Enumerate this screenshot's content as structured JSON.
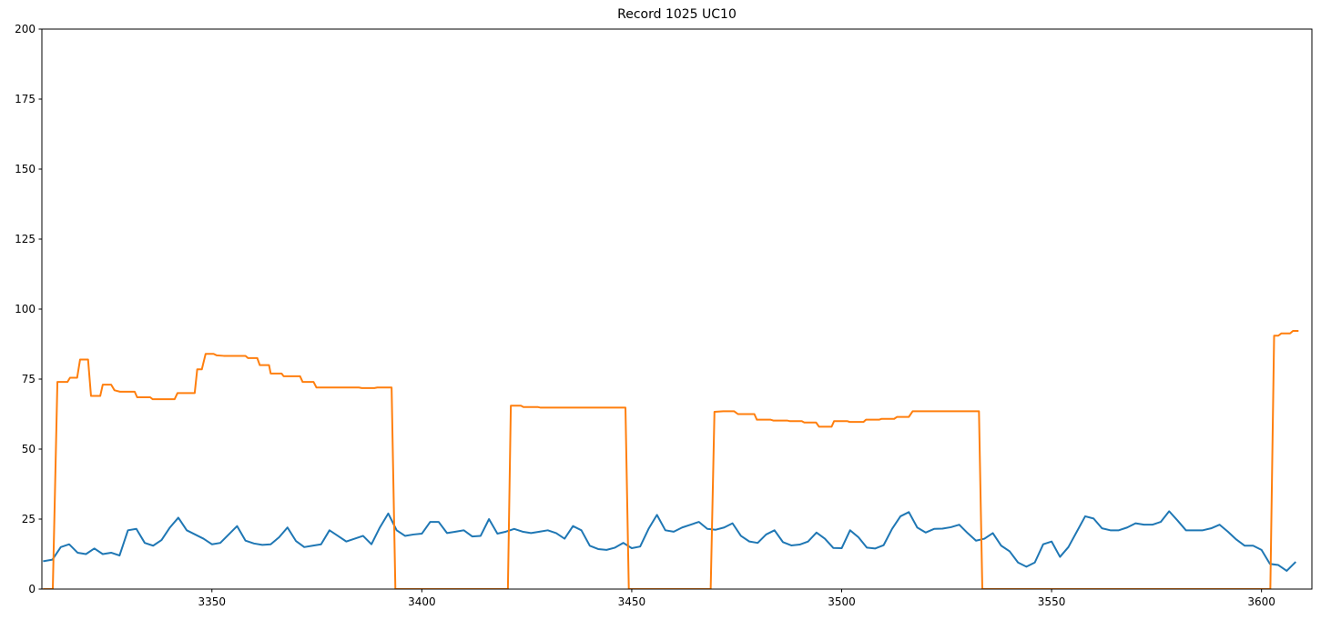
{
  "chart_data": {
    "type": "line",
    "title": "Record 1025 UC10",
    "xlim": [
      3309.5,
      3612
    ],
    "ylim": [
      0,
      200
    ],
    "xticks": [
      3350,
      3400,
      3450,
      3500,
      3550,
      3600
    ],
    "yticks": [
      0,
      25,
      50,
      75,
      100,
      125,
      150,
      175,
      200
    ],
    "grid": false,
    "series": [
      {
        "color": "#1f77b4",
        "x": [
          3310,
          3312,
          3314,
          3316,
          3318,
          3320,
          3322,
          3324,
          3326,
          3328,
          3330,
          3332,
          3334,
          3336,
          3338,
          3340,
          3342,
          3344,
          3346,
          3348,
          3350,
          3352,
          3354,
          3356,
          3358,
          3360,
          3362,
          3364,
          3366,
          3368,
          3370,
          3372,
          3374,
          3376,
          3378,
          3380,
          3382,
          3384,
          3386,
          3388,
          3390,
          3392,
          3394,
          3396,
          3398,
          3400,
          3402,
          3404,
          3406,
          3408,
          3410,
          3412,
          3414,
          3416,
          3418,
          3420,
          3422,
          3424,
          3426,
          3428,
          3430,
          3432,
          3434,
          3436,
          3438,
          3440,
          3442,
          3444,
          3446,
          3448,
          3450,
          3452,
          3454,
          3456,
          3458,
          3460,
          3462,
          3464,
          3466,
          3468,
          3470,
          3472,
          3474,
          3476,
          3478,
          3480,
          3482,
          3484,
          3486,
          3488,
          3490,
          3492,
          3494,
          3496,
          3498,
          3500,
          3502,
          3504,
          3506,
          3508,
          3510,
          3512,
          3514,
          3516,
          3518,
          3520,
          3522,
          3524,
          3526,
          3528,
          3530,
          3532,
          3534,
          3536,
          3538,
          3540,
          3542,
          3544,
          3546,
          3548,
          3550,
          3552,
          3554,
          3556,
          3558,
          3560,
          3562,
          3564,
          3566,
          3568,
          3570,
          3572,
          3574,
          3576,
          3578,
          3580,
          3582,
          3584,
          3586,
          3588,
          3590,
          3592,
          3594,
          3596,
          3598,
          3600,
          3602,
          3604,
          3606,
          3608
        ],
        "values": [
          10,
          10.5,
          15,
          16,
          13,
          12.5,
          14.5,
          12.5,
          13,
          12,
          21,
          21.5,
          16.5,
          15.5,
          17.5,
          22,
          25.5,
          21,
          19.5,
          18,
          16,
          16.5,
          19.5,
          22.5,
          17.3,
          16.3,
          15.8,
          16,
          18.5,
          22,
          17.2,
          15,
          15.5,
          16,
          21,
          19,
          17,
          18,
          19,
          16,
          22,
          27,
          21,
          19,
          19.5,
          19.8,
          24,
          24,
          20,
          20.5,
          21,
          18.8,
          19,
          25,
          19.8,
          20.5,
          21.5,
          20.5,
          20,
          20.5,
          21,
          20,
          18,
          22.5,
          21,
          15.5,
          14.3,
          14,
          14.8,
          16.5,
          14.6,
          15.2,
          21.5,
          26.5,
          21,
          20.5,
          22,
          23,
          24,
          21.5,
          21.2,
          22,
          23.5,
          19,
          17,
          16.5,
          19.5,
          21,
          16.8,
          15.6,
          15.9,
          17,
          20.2,
          18,
          14.7,
          14.6,
          21,
          18.5,
          14.8,
          14.5,
          15.7,
          21.5,
          26,
          27.5,
          22,
          20.2,
          21.5,
          21.6,
          22.1,
          23,
          20,
          17.3,
          18,
          20,
          15.5,
          13.5,
          9.5,
          8,
          9.5,
          16,
          17,
          11.5,
          15,
          20.5,
          26,
          25.2,
          21.7,
          21,
          21,
          22,
          23.5,
          23,
          23,
          24,
          27.8,
          24.5,
          21,
          21,
          21,
          21.7,
          23,
          20.5,
          17.7,
          15.5,
          15.5,
          14,
          9,
          8.6,
          6.5,
          9.5
        ]
      },
      {
        "color": "#ff7f0e",
        "x": [
          3310,
          3312.1,
          3313.2,
          3315.6,
          3316.2,
          3317.9,
          3318.6,
          3320.5,
          3321.2,
          3323.4,
          3324.0,
          3326.0,
          3326.8,
          3328.1,
          3331.6,
          3332.2,
          3335.3,
          3335.9,
          3341.1,
          3341.8,
          3345.9,
          3346.5,
          3347.6,
          3348.5,
          3350.4,
          3351.1,
          3352.8,
          3358.0,
          3358.6,
          3360.8,
          3361.4,
          3363.6,
          3364.0,
          3366.6,
          3367.1,
          3371.0,
          3371.6,
          3374.2,
          3374.9,
          3385.0,
          3385.7,
          3388.7,
          3389.4,
          3392.8,
          3393.7,
          3420.5,
          3421.2,
          3423.6,
          3424.2,
          3427.7,
          3428.3,
          3448.5,
          3449.3,
          3468.8,
          3469.7,
          3471.8,
          3474.4,
          3475.3,
          3479.2,
          3479.8,
          3483.1,
          3483.7,
          3487.0,
          3487.6,
          3490.5,
          3491.1,
          3493.9,
          3494.6,
          3497.6,
          3498.2,
          3501.3,
          3501.9,
          3505.2,
          3505.8,
          3508.9,
          3509.5,
          3512.5,
          3513.2,
          3516.0,
          3516.9,
          3532.7,
          3533.5,
          3602.1,
          3603.0,
          3604.0,
          3604.7,
          3606.8,
          3607.5,
          3608.6
        ],
        "values": [
          0,
          0,
          74,
          74,
          75.5,
          75.5,
          82,
          82,
          69,
          69,
          73,
          73,
          71,
          70.5,
          70.5,
          68.5,
          68.5,
          67.8,
          67.8,
          70,
          70,
          78.5,
          78.5,
          84,
          84,
          83.5,
          83.3,
          83.3,
          82.5,
          82.5,
          80,
          80,
          77,
          77,
          76,
          76,
          74,
          74,
          72,
          72,
          71.8,
          71.8,
          72,
          72,
          0,
          0,
          65.5,
          65.5,
          65,
          65,
          64.8,
          64.8,
          0,
          0,
          63.3,
          63.5,
          63.5,
          62.5,
          62.5,
          60.5,
          60.5,
          60.2,
          60.2,
          60,
          60,
          59.5,
          59.5,
          58,
          58,
          60,
          60,
          59.7,
          59.7,
          60.5,
          60.5,
          60.8,
          60.8,
          61.5,
          61.5,
          63.5,
          63.5,
          0,
          0,
          90.5,
          90.5,
          91.3,
          91.3,
          92.2,
          92.2
        ]
      }
    ]
  }
}
